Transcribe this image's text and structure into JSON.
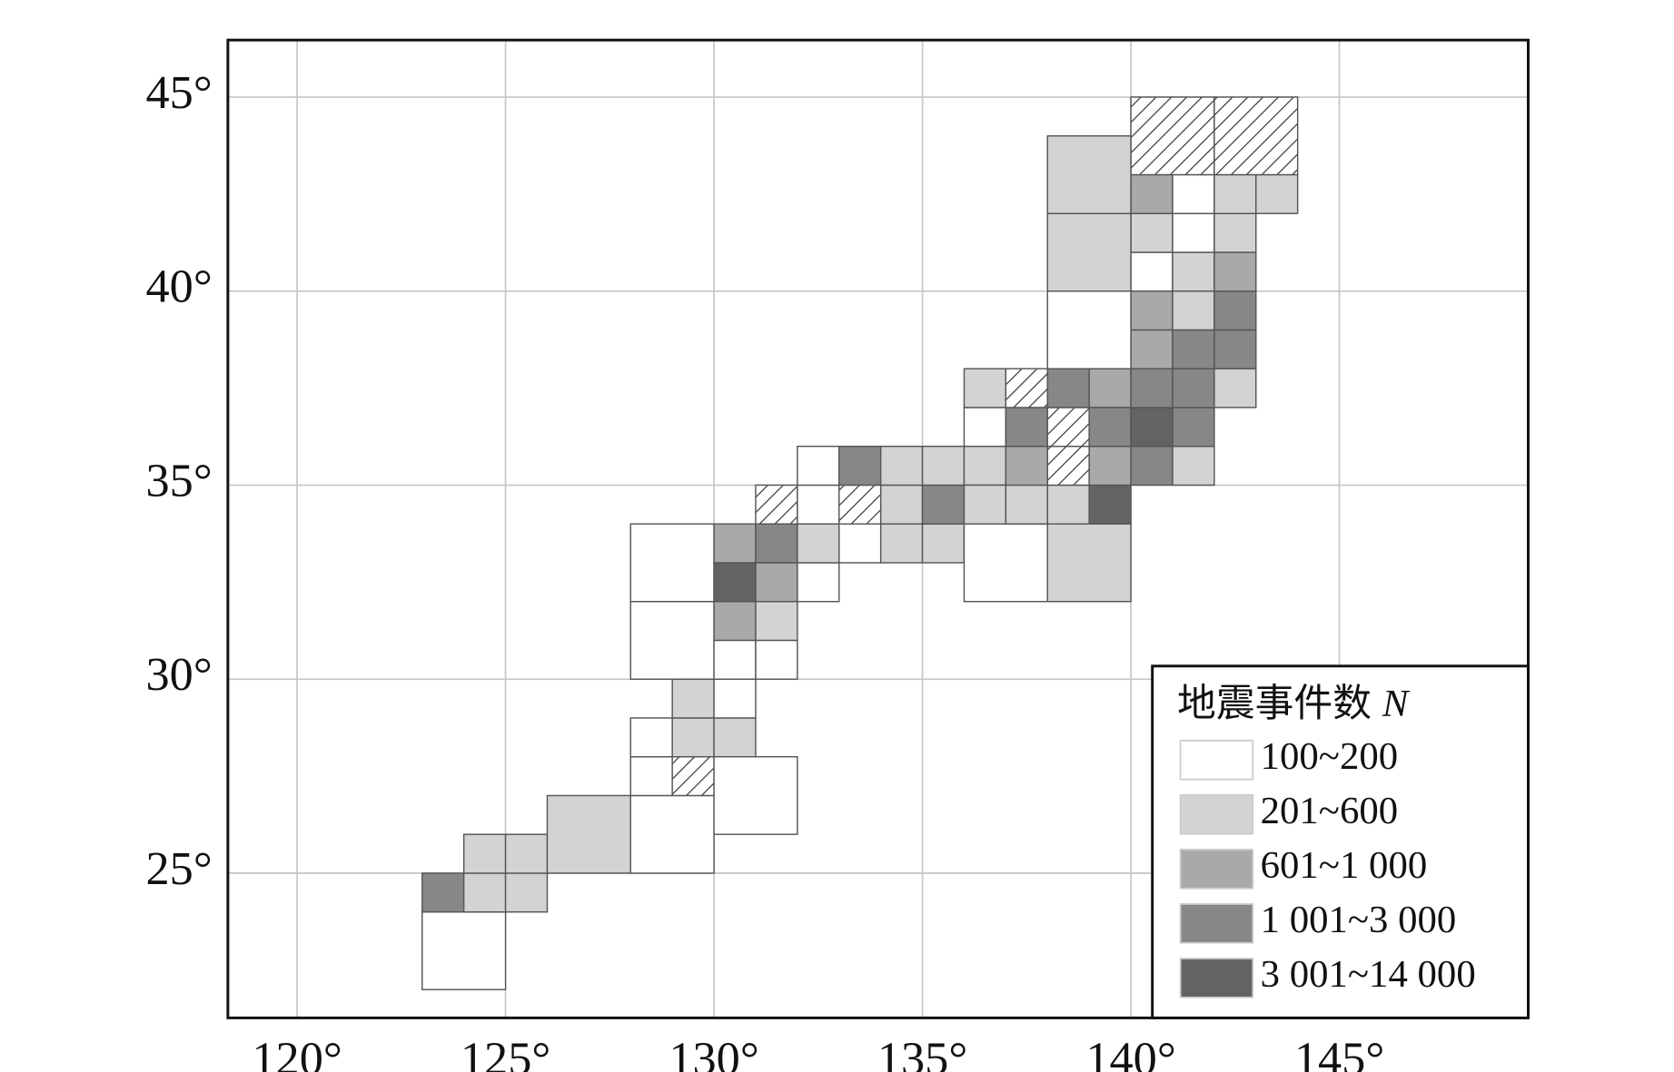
{
  "chart_data": {
    "type": "grid-map",
    "xlim": [
      118.34,
      149.53
    ],
    "ylim": [
      21.27,
      46.47
    ],
    "xticks": [
      {
        "value": 120,
        "label": "120°"
      },
      {
        "value": 125,
        "label": "125°"
      },
      {
        "value": 130,
        "label": "130°"
      },
      {
        "value": 135,
        "label": "135°"
      },
      {
        "value": 140,
        "label": "140°"
      },
      {
        "value": 145,
        "label": "145°"
      }
    ],
    "yticks": [
      {
        "value": 25,
        "label": "25°"
      },
      {
        "value": 30,
        "label": "30°"
      },
      {
        "value": 35,
        "label": "35°"
      },
      {
        "value": 40,
        "label": "40°"
      },
      {
        "value": 45,
        "label": "45°"
      }
    ],
    "grid": true,
    "legend": {
      "title": "地震事件数",
      "title_symbol": "N",
      "position": "lower right",
      "items": [
        {
          "label": "100~200",
          "color": "#ffffff"
        },
        {
          "label": "201~600",
          "color": "#d3d3d3"
        },
        {
          "label": "601~1 000",
          "color": "#a9a9a9"
        },
        {
          "label": "1 001~3 000",
          "color": "#878787"
        },
        {
          "label": "3 001~14 000",
          "color": "#636363"
        }
      ]
    },
    "cells": [
      {
        "lon": 123,
        "lat": 22,
        "size": 2,
        "level": 0
      },
      {
        "lon": 123,
        "lat": 24,
        "size": 1,
        "level": 3
      },
      {
        "lon": 124,
        "lat": 24,
        "size": 1,
        "level": 1
      },
      {
        "lon": 124,
        "lat": 25,
        "size": 1,
        "level": 1
      },
      {
        "lon": 125,
        "lat": 24,
        "size": 1,
        "level": 1
      },
      {
        "lon": 125,
        "lat": 25,
        "size": 1,
        "level": 1
      },
      {
        "lon": 126,
        "lat": 25,
        "size": 2,
        "level": 1
      },
      {
        "lon": 128,
        "lat": 25,
        "size": 2,
        "level": 0
      },
      {
        "lon": 128,
        "lat": 27,
        "size": 1,
        "level": 0
      },
      {
        "lon": 129,
        "lat": 27,
        "size": 1,
        "level": null
      },
      {
        "lon": 128,
        "lat": 28,
        "size": 1,
        "level": 0
      },
      {
        "lon": 129,
        "lat": 28,
        "size": 1,
        "level": 1
      },
      {
        "lon": 129,
        "lat": 29,
        "size": 1,
        "level": 1
      },
      {
        "lon": 130,
        "lat": 28,
        "size": 1,
        "level": 1
      },
      {
        "lon": 130,
        "lat": 29,
        "size": 1,
        "level": 0
      },
      {
        "lon": 130,
        "lat": 26,
        "size": 2,
        "level": 0
      },
      {
        "lon": 128,
        "lat": 30,
        "size": 2,
        "level": 0
      },
      {
        "lon": 128,
        "lat": 32,
        "size": 2,
        "level": 0
      },
      {
        "lon": 130,
        "lat": 30,
        "size": 1,
        "level": 0
      },
      {
        "lon": 131,
        "lat": 30,
        "size": 1,
        "level": 0
      },
      {
        "lon": 130,
        "lat": 31,
        "size": 1,
        "level": 2
      },
      {
        "lon": 131,
        "lat": 31,
        "size": 1,
        "level": 1
      },
      {
        "lon": 130,
        "lat": 32,
        "size": 1,
        "level": 4
      },
      {
        "lon": 131,
        "lat": 32,
        "size": 1,
        "level": 2
      },
      {
        "lon": 130,
        "lat": 33,
        "size": 1,
        "level": 2
      },
      {
        "lon": 131,
        "lat": 33,
        "size": 1,
        "level": 3
      },
      {
        "lon": 132,
        "lat": 32,
        "size": 1,
        "level": 0
      },
      {
        "lon": 132,
        "lat": 33,
        "size": 1,
        "level": 1
      },
      {
        "lon": 131,
        "lat": 34,
        "size": 1,
        "level": null
      },
      {
        "lon": 132,
        "lat": 34,
        "size": 1,
        "level": 0
      },
      {
        "lon": 133,
        "lat": 34,
        "size": 1,
        "level": null
      },
      {
        "lon": 132,
        "lat": 35,
        "size": 1,
        "level": 0
      },
      {
        "lon": 133,
        "lat": 35,
        "size": 1,
        "level": 3
      },
      {
        "lon": 133,
        "lat": 33,
        "size": 1,
        "level": 0
      },
      {
        "lon": 134,
        "lat": 33,
        "size": 1,
        "level": 1
      },
      {
        "lon": 135,
        "lat": 33,
        "size": 1,
        "level": 1
      },
      {
        "lon": 134,
        "lat": 34,
        "size": 1,
        "level": 1
      },
      {
        "lon": 135,
        "lat": 34,
        "size": 1,
        "level": 3
      },
      {
        "lon": 134,
        "lat": 35,
        "size": 1,
        "level": 1
      },
      {
        "lon": 135,
        "lat": 35,
        "size": 1,
        "level": 1
      },
      {
        "lon": 136,
        "lat": 35,
        "size": 1,
        "level": 1
      },
      {
        "lon": 136,
        "lat": 34,
        "size": 1,
        "level": 1
      },
      {
        "lon": 136,
        "lat": 32,
        "size": 2,
        "level": 0
      },
      {
        "lon": 137,
        "lat": 34,
        "size": 1,
        "level": 1
      },
      {
        "lon": 137,
        "lat": 35,
        "size": 1,
        "level": 2
      },
      {
        "lon": 138,
        "lat": 34,
        "size": 1,
        "level": 1
      },
      {
        "lon": 138,
        "lat": 35,
        "size": 1,
        "level": null
      },
      {
        "lon": 138,
        "lat": 36,
        "size": 1,
        "level": null
      },
      {
        "lon": 139,
        "lat": 34,
        "size": 1,
        "level": 4
      },
      {
        "lon": 139,
        "lat": 35,
        "size": 1,
        "level": 2
      },
      {
        "lon": 138,
        "lat": 32,
        "size": 2,
        "level": 1
      },
      {
        "lon": 136,
        "lat": 36,
        "size": 1,
        "level": 0
      },
      {
        "lon": 137,
        "lat": 36,
        "size": 1,
        "level": 3
      },
      {
        "lon": 136,
        "lat": 37,
        "size": 1,
        "level": 1
      },
      {
        "lon": 137,
        "lat": 37,
        "size": 1,
        "level": null
      },
      {
        "lon": 138,
        "lat": 37,
        "size": 1,
        "level": 3
      },
      {
        "lon": 139,
        "lat": 37,
        "size": 1,
        "level": 2
      },
      {
        "lon": 139,
        "lat": 36,
        "size": 1,
        "level": 3
      },
      {
        "lon": 140,
        "lat": 35,
        "size": 1,
        "level": 3
      },
      {
        "lon": 140,
        "lat": 36,
        "size": 1,
        "level": 4
      },
      {
        "lon": 140,
        "lat": 37,
        "size": 1,
        "level": 3
      },
      {
        "lon": 141,
        "lat": 35,
        "size": 1,
        "level": 1
      },
      {
        "lon": 141,
        "lat": 36,
        "size": 1,
        "level": 3
      },
      {
        "lon": 141,
        "lat": 37,
        "size": 1,
        "level": 3
      },
      {
        "lon": 142,
        "lat": 37,
        "size": 1,
        "level": 1
      },
      {
        "lon": 140,
        "lat": 38,
        "size": 1,
        "level": 2
      },
      {
        "lon": 141,
        "lat": 38,
        "size": 1,
        "level": 3
      },
      {
        "lon": 142,
        "lat": 38,
        "size": 1,
        "level": 3
      },
      {
        "lon": 140,
        "lat": 39,
        "size": 1,
        "level": 2
      },
      {
        "lon": 141,
        "lat": 39,
        "size": 1,
        "level": 1
      },
      {
        "lon": 142,
        "lat": 39,
        "size": 1,
        "level": 3
      },
      {
        "lon": 140,
        "lat": 40,
        "size": 1,
        "level": 0
      },
      {
        "lon": 141,
        "lat": 40,
        "size": 1,
        "level": 1
      },
      {
        "lon": 142,
        "lat": 40,
        "size": 1,
        "level": 2
      },
      {
        "lon": 140,
        "lat": 41,
        "size": 1,
        "level": 1
      },
      {
        "lon": 141,
        "lat": 41,
        "size": 1,
        "level": 0
      },
      {
        "lon": 142,
        "lat": 41,
        "size": 1,
        "level": 1
      },
      {
        "lon": 140,
        "lat": 42,
        "size": 1,
        "level": 2
      },
      {
        "lon": 141,
        "lat": 42,
        "size": 1,
        "level": 0
      },
      {
        "lon": 142,
        "lat": 42,
        "size": 1,
        "level": 1
      },
      {
        "lon": 143,
        "lat": 42,
        "size": 1,
        "level": 1
      },
      {
        "lon": 140,
        "lat": 43,
        "size": 2,
        "level": null
      },
      {
        "lon": 142,
        "lat": 43,
        "size": 2,
        "level": null
      },
      {
        "lon": 138,
        "lat": 38,
        "size": 2,
        "level": 0
      },
      {
        "lon": 138,
        "lat": 40,
        "size": 2,
        "level": 1
      },
      {
        "lon": 138,
        "lat": 42,
        "size": 2,
        "level": 1
      }
    ]
  }
}
